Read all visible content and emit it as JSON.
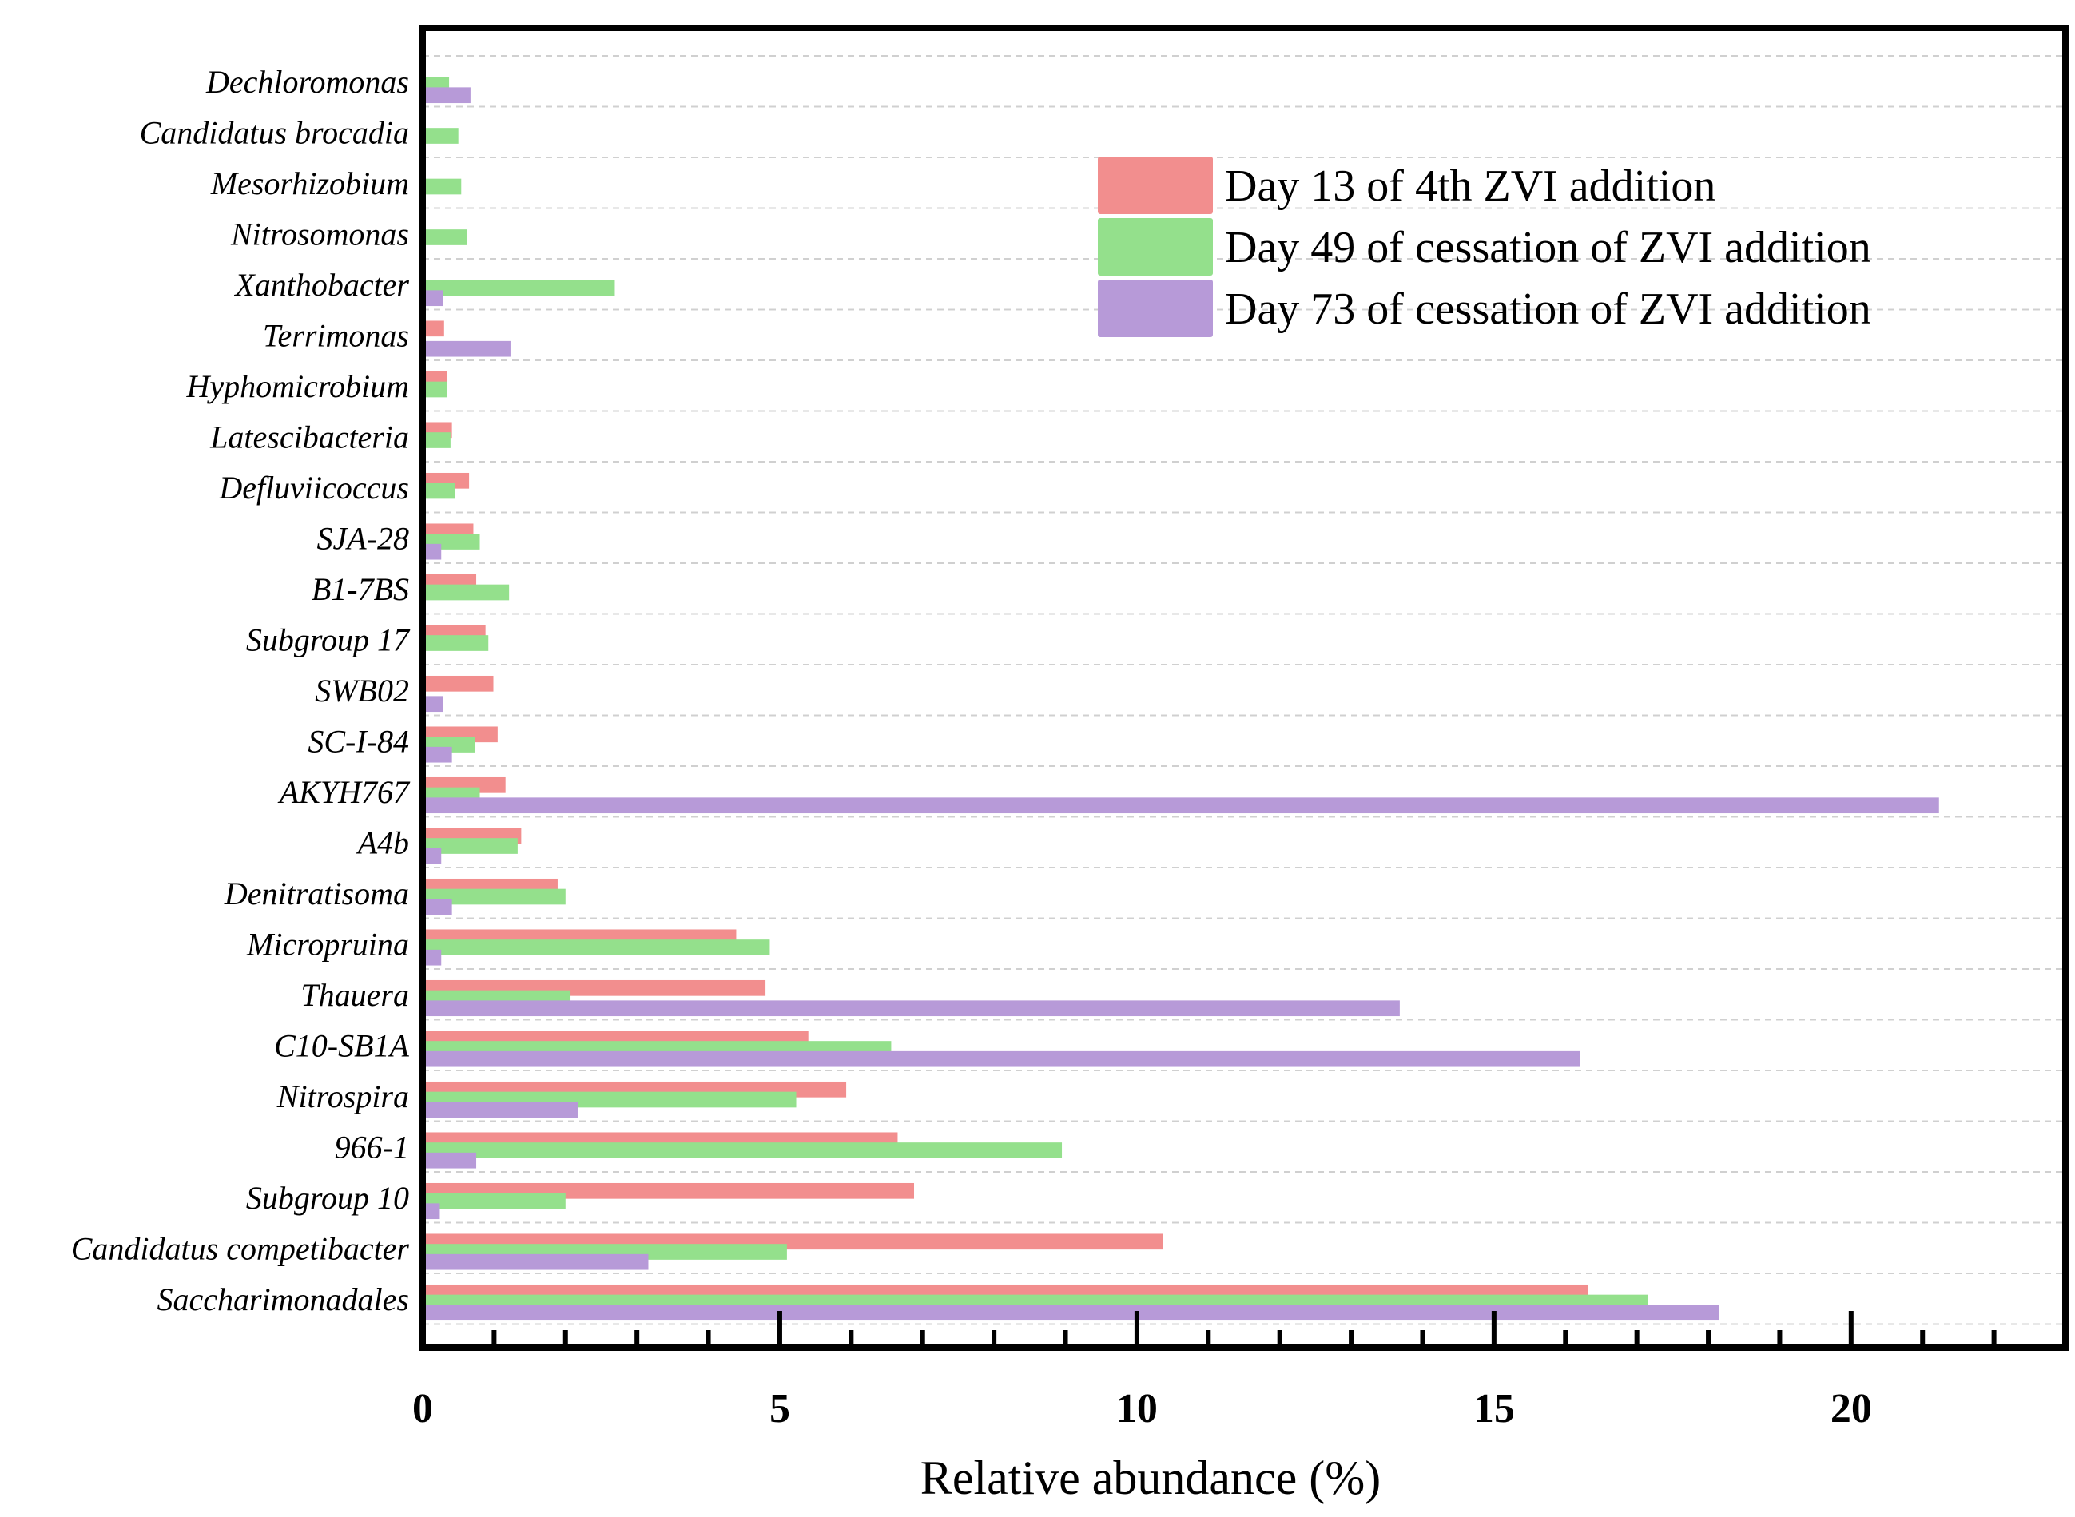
{
  "chart_data": {
    "type": "bar",
    "orientation": "horizontal",
    "title": "",
    "xlabel": "Relative abundance (%)",
    "ylabel": "",
    "xlim": [
      0,
      23
    ],
    "xticks": [
      0,
      5,
      10,
      15,
      20
    ],
    "minor_tick_step": 1,
    "grid": "horizontal dashed",
    "legend_placement": "top-right",
    "categories": [
      "Dechloromonas",
      "Candidatus brocadia",
      "Mesorhizobium",
      "Nitrosomonas",
      "Xanthobacter",
      "Terrimonas",
      "Hyphomicrobium",
      "Latescibacteria",
      "Defluviicoccus",
      "SJA-28",
      "B1-7BS",
      "Subgroup 17",
      "SWB02",
      "SC-I-84",
      "AKYH767",
      "A4b",
      "Denitratisoma",
      "Micropruina",
      "Thauera",
      "C10-SB1A",
      "Nitrospira",
      "966-1",
      "Subgroup 10",
      "Candidatus competibacter",
      "Saccharimonadales"
    ],
    "series": [
      {
        "name": "Day 13 of 4th ZVI addition",
        "color": "#f28e8e",
        "values": [
          0,
          0,
          0,
          0,
          0,
          0.3,
          0.34,
          0.41,
          0.65,
          0.71,
          0.75,
          0.88,
          0.99,
          1.05,
          1.16,
          1.38,
          1.89,
          4.39,
          4.8,
          5.4,
          5.93,
          6.65,
          6.88,
          10.37,
          16.32
        ]
      },
      {
        "name": "Day 49 of cessation of ZVI addition",
        "color": "#94e08c",
        "values": [
          0.37,
          0.5,
          0.54,
          0.62,
          2.69,
          0,
          0.34,
          0.39,
          0.45,
          0.8,
          1.21,
          0.92,
          0,
          0.73,
          0.8,
          1.33,
          2.0,
          4.86,
          2.07,
          6.56,
          5.23,
          8.95,
          2.0,
          5.1,
          17.16
        ]
      },
      {
        "name": "Day 73 of cessation of ZVI addition",
        "color": "#b79ad8",
        "values": [
          0.67,
          0,
          0,
          0,
          0.28,
          1.23,
          0,
          0,
          0,
          0.26,
          0,
          0,
          0.28,
          0.41,
          21.23,
          0.26,
          0.41,
          0.26,
          13.68,
          16.2,
          2.17,
          0.75,
          0.24,
          3.16,
          18.15
        ]
      }
    ]
  }
}
